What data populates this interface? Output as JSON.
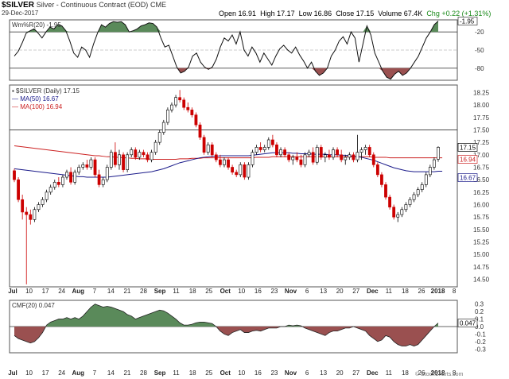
{
  "header": {
    "symbol": "$SILVER",
    "description": "Silver - Continuous Contract (EOD)",
    "exchange": "CME",
    "date": "29-Dec-2017",
    "open": "Open 16.91",
    "high": "High 17.17",
    "low": "Low 16.86",
    "close": "Close 17.15",
    "volume": "Volume 67.4K",
    "change": "Chg +0.22 (+1.31%)",
    "change_color": "#1a8a1a"
  },
  "watermark": "© StockCharts.com",
  "colors": {
    "up": "#ffffff",
    "down": "#cc0000",
    "candle_outline": "#000000",
    "ma50": "#1a1a8a",
    "ma100": "#cc2222",
    "green_fill": "#5a8a5a",
    "red_fill": "#9a5050",
    "price_badge_close": "#ffffff",
    "price_badge_ma100": "#cc2222",
    "price_badge_ma50": "#1a1a8a"
  },
  "x_labels": [
    "Jul",
    "10",
    "17",
    "24",
    "Aug",
    "7",
    "14",
    "21",
    "28",
    "Sep",
    "11",
    "18",
    "25",
    "Oct",
    "10",
    "16",
    "23",
    "Nov",
    "6",
    "13",
    "20",
    "27",
    "Dec",
    "11",
    "18",
    "26",
    "2018",
    "8"
  ],
  "panels": {
    "willr": {
      "legend": "Wm%R(20) -1.95",
      "ticks": [
        "-20",
        "-50",
        "-80"
      ],
      "badge": "-1.95",
      "series": [
        -60,
        -52,
        -38,
        -22,
        -18,
        -15,
        -22,
        -30,
        -20,
        -12,
        -15,
        -8,
        -10,
        -18,
        -35,
        -55,
        -62,
        -45,
        -50,
        -62,
        -40,
        -22,
        -8,
        -12,
        -6,
        -3,
        -4,
        -3,
        -8,
        -20,
        -18,
        -15,
        -10,
        -8,
        -5,
        -6,
        -12,
        -30,
        -45,
        -42,
        -60,
        -78,
        -88,
        -85,
        -78,
        -60,
        -55,
        -70,
        -78,
        -82,
        -78,
        -65,
        -45,
        -30,
        -35,
        -25,
        -40,
        -20,
        -50,
        -60,
        -45,
        -55,
        -70,
        -55,
        -65,
        -75,
        -60,
        -48,
        -42,
        -50,
        -55,
        -45,
        -58,
        -68,
        -80,
        -70,
        -85,
        -92,
        -88,
        -80,
        -60,
        -50,
        -35,
        -28,
        -40,
        -20,
        -30,
        -70,
        -40,
        -10,
        -25,
        -55,
        -70,
        -85,
        -95,
        -98,
        -90,
        -85,
        -92,
        -88,
        -80,
        -70,
        -60,
        -45,
        -30,
        -20,
        -8,
        -2
      ]
    },
    "price": {
      "legend_symbol": "$SILVER (Daily) 17.15",
      "legend_ma50": "MA(50) 16.67",
      "legend_ma100": "MA(100) 16.94",
      "ticks": [
        "18.25",
        "18.00",
        "17.75",
        "17.50",
        "17.25",
        "17.00",
        "16.75",
        "16.50",
        "16.25",
        "16.00",
        "15.75",
        "15.50",
        "15.25",
        "15.00",
        "14.75",
        "14.50"
      ],
      "badges": [
        "17.15",
        "16.94",
        "16.67"
      ]
    },
    "cmf": {
      "legend": "CMF(20) 0.047",
      "ticks": [
        "0.3",
        "0.2",
        "0.1",
        "0.0",
        "-0.1",
        "-0.2",
        "-0.3"
      ],
      "badge": "0.047",
      "series": [
        -0.12,
        -0.16,
        -0.18,
        -0.2,
        -0.22,
        -0.2,
        -0.15,
        -0.08,
        0.02,
        0.06,
        0.08,
        0.1,
        0.1,
        0.12,
        0.1,
        0.12,
        0.1,
        0.14,
        0.2,
        0.26,
        0.3,
        0.28,
        0.26,
        0.27,
        0.26,
        0.24,
        0.22,
        0.2,
        0.16,
        0.14,
        0.1,
        0.12,
        0.14,
        0.16,
        0.18,
        0.2,
        0.22,
        0.21,
        0.18,
        0.14,
        0.1,
        0.05,
        0.02,
        0.02,
        0.03,
        0.05,
        0.06,
        0.06,
        0.05,
        0.04,
        0.0,
        -0.06,
        -0.1,
        -0.12,
        -0.08,
        -0.06,
        -0.04,
        -0.08,
        -0.08,
        -0.06,
        -0.05,
        -0.06,
        -0.04,
        -0.02,
        -0.02,
        -0.02,
        0.0,
        0.0,
        0.02,
        0.01,
        0.02,
        0.01,
        -0.02,
        -0.04,
        -0.06,
        -0.08,
        -0.1,
        -0.12,
        -0.08,
        -0.06,
        -0.06,
        -0.04,
        -0.02,
        -0.02,
        0.0,
        -0.02,
        -0.04,
        -0.06,
        -0.12,
        -0.16,
        -0.2,
        -0.18,
        -0.12,
        -0.14,
        -0.2,
        -0.24,
        -0.26,
        -0.26,
        -0.24,
        -0.26,
        -0.24,
        -0.18,
        -0.12,
        -0.06,
        0.0,
        0.047
      ]
    }
  },
  "chart_data": {
    "type": "candlestick",
    "title": "$SILVER Silver - Continuous Contract (EOD) CME",
    "candles": [
      [
        16.68,
        16.72,
        16.45,
        16.5
      ],
      [
        16.5,
        16.55,
        16.05,
        16.1
      ],
      [
        16.1,
        16.2,
        15.7,
        15.85
      ],
      [
        15.85,
        15.95,
        14.4,
        15.8
      ],
      [
        15.8,
        15.9,
        15.6,
        15.7
      ],
      [
        15.7,
        15.95,
        15.65,
        15.9
      ],
      [
        15.9,
        16.05,
        15.85,
        16.0
      ],
      [
        16.0,
        16.15,
        15.95,
        16.1
      ],
      [
        16.1,
        16.3,
        16.05,
        16.25
      ],
      [
        16.25,
        16.4,
        16.2,
        16.35
      ],
      [
        16.35,
        16.5,
        16.3,
        16.45
      ],
      [
        16.45,
        16.55,
        16.35,
        16.4
      ],
      [
        16.4,
        16.6,
        16.35,
        16.55
      ],
      [
        16.55,
        16.7,
        16.5,
        16.65
      ],
      [
        16.65,
        16.75,
        16.4,
        16.45
      ],
      [
        16.45,
        16.7,
        16.4,
        16.65
      ],
      [
        16.65,
        16.8,
        16.6,
        16.75
      ],
      [
        16.75,
        16.85,
        16.7,
        16.8
      ],
      [
        16.8,
        16.9,
        16.7,
        16.75
      ],
      [
        16.75,
        16.95,
        16.7,
        16.9
      ],
      [
        16.9,
        16.95,
        16.55,
        16.6
      ],
      [
        16.6,
        16.7,
        16.35,
        16.4
      ],
      [
        16.4,
        16.55,
        16.35,
        16.5
      ],
      [
        16.5,
        16.8,
        16.45,
        16.75
      ],
      [
        16.75,
        17.1,
        16.7,
        17.05
      ],
      [
        17.05,
        17.25,
        16.75,
        16.8
      ],
      [
        16.8,
        17.1,
        16.7,
        17.0
      ],
      [
        17.0,
        17.05,
        16.65,
        16.7
      ],
      [
        16.7,
        17.05,
        16.65,
        17.0
      ],
      [
        17.0,
        17.15,
        16.95,
        17.1
      ],
      [
        17.1,
        17.15,
        16.9,
        16.95
      ],
      [
        16.95,
        17.1,
        16.9,
        17.05
      ],
      [
        17.05,
        17.1,
        16.95,
        17.0
      ],
      [
        17.0,
        17.05,
        16.85,
        16.9
      ],
      [
        16.9,
        17.1,
        16.85,
        17.05
      ],
      [
        17.05,
        17.3,
        17.0,
        17.25
      ],
      [
        17.25,
        17.5,
        17.2,
        17.45
      ],
      [
        17.45,
        17.7,
        17.4,
        17.65
      ],
      [
        17.65,
        17.95,
        17.6,
        17.9
      ],
      [
        17.9,
        18.05,
        17.85,
        18.0
      ],
      [
        18.0,
        18.2,
        17.95,
        18.15
      ],
      [
        18.15,
        18.3,
        18.05,
        18.1
      ],
      [
        18.1,
        18.15,
        17.9,
        17.95
      ],
      [
        17.95,
        18.05,
        17.85,
        17.9
      ],
      [
        17.9,
        17.95,
        17.75,
        17.8
      ],
      [
        17.8,
        17.85,
        17.55,
        17.6
      ],
      [
        17.6,
        17.65,
        17.3,
        17.35
      ],
      [
        17.35,
        17.4,
        17.0,
        17.05
      ],
      [
        17.05,
        17.25,
        17.0,
        17.2
      ],
      [
        17.2,
        17.25,
        16.95,
        17.0
      ],
      [
        17.0,
        17.05,
        16.85,
        16.9
      ],
      [
        16.9,
        17.0,
        16.75,
        16.8
      ],
      [
        16.8,
        16.95,
        16.75,
        16.9
      ],
      [
        16.9,
        16.95,
        16.7,
        16.75
      ],
      [
        16.75,
        16.8,
        16.6,
        16.65
      ],
      [
        16.65,
        16.7,
        16.55,
        16.6
      ],
      [
        16.6,
        16.85,
        16.55,
        16.8
      ],
      [
        16.8,
        16.85,
        16.5,
        16.55
      ],
      [
        16.55,
        16.85,
        16.5,
        16.8
      ],
      [
        16.8,
        17.1,
        16.75,
        17.05
      ],
      [
        17.05,
        17.2,
        17.0,
        17.15
      ],
      [
        17.15,
        17.25,
        17.05,
        17.1
      ],
      [
        17.1,
        17.2,
        17.05,
        17.15
      ],
      [
        17.15,
        17.35,
        17.1,
        17.3
      ],
      [
        17.3,
        17.4,
        17.15,
        17.2
      ],
      [
        17.2,
        17.25,
        16.95,
        17.0
      ],
      [
        17.0,
        17.15,
        16.95,
        17.1
      ],
      [
        17.1,
        17.15,
        16.95,
        17.0
      ],
      [
        17.0,
        17.05,
        16.85,
        16.9
      ],
      [
        16.9,
        17.0,
        16.8,
        16.95
      ],
      [
        16.95,
        17.05,
        16.85,
        16.9
      ],
      [
        16.9,
        17.0,
        16.75,
        16.8
      ],
      [
        16.8,
        17.05,
        16.75,
        17.0
      ],
      [
        17.0,
        17.1,
        16.95,
        17.05
      ],
      [
        17.05,
        17.15,
        16.8,
        16.85
      ],
      [
        16.85,
        17.2,
        16.8,
        17.15
      ],
      [
        17.15,
        17.2,
        16.9,
        16.95
      ],
      [
        16.95,
        17.05,
        16.85,
        17.0
      ],
      [
        17.0,
        17.1,
        16.9,
        16.95
      ],
      [
        16.95,
        17.15,
        16.9,
        17.1
      ],
      [
        17.1,
        17.15,
        16.95,
        17.0
      ],
      [
        17.0,
        17.1,
        16.85,
        16.9
      ],
      [
        16.9,
        17.0,
        16.8,
        16.95
      ],
      [
        16.95,
        17.05,
        16.9,
        17.0
      ],
      [
        17.0,
        17.05,
        16.85,
        16.9
      ],
      [
        16.9,
        17.4,
        16.85,
        17.05
      ],
      [
        17.05,
        17.15,
        16.9,
        17.1
      ],
      [
        17.1,
        17.2,
        17.0,
        17.15
      ],
      [
        17.15,
        17.2,
        16.95,
        17.0
      ],
      [
        17.0,
        17.05,
        16.75,
        16.8
      ],
      [
        16.8,
        16.85,
        16.55,
        16.6
      ],
      [
        16.6,
        16.65,
        16.35,
        16.4
      ],
      [
        16.4,
        16.45,
        16.1,
        16.15
      ],
      [
        16.15,
        16.2,
        15.9,
        15.95
      ],
      [
        15.95,
        16.0,
        15.7,
        15.75
      ],
      [
        15.75,
        15.85,
        15.65,
        15.8
      ],
      [
        15.8,
        15.95,
        15.75,
        15.9
      ],
      [
        15.9,
        16.05,
        15.85,
        16.0
      ],
      [
        16.0,
        16.15,
        15.95,
        16.1
      ],
      [
        16.1,
        16.25,
        16.05,
        16.2
      ],
      [
        16.2,
        16.35,
        16.15,
        16.3
      ],
      [
        16.3,
        16.45,
        16.25,
        16.4
      ],
      [
        16.4,
        16.65,
        16.35,
        16.6
      ],
      [
        16.6,
        16.8,
        16.55,
        16.75
      ],
      [
        16.75,
        16.95,
        16.7,
        16.9
      ],
      [
        16.91,
        17.17,
        16.86,
        17.15
      ]
    ],
    "ma50": [
      16.72,
      16.71,
      16.7,
      16.69,
      16.68,
      16.67,
      16.66,
      16.65,
      16.64,
      16.63,
      16.62,
      16.61,
      16.6,
      16.59,
      16.58,
      16.57,
      16.56,
      16.56,
      16.55,
      16.55,
      16.55,
      16.55,
      16.55,
      16.55,
      16.56,
      16.57,
      16.58,
      16.59,
      16.6,
      16.61,
      16.62,
      16.63,
      16.64,
      16.65,
      16.66,
      16.68,
      16.7,
      16.72,
      16.75,
      16.78,
      16.81,
      16.84,
      16.86,
      16.88,
      16.9,
      16.92,
      16.94,
      16.95,
      16.96,
      16.97,
      16.97,
      16.98,
      16.98,
      16.98,
      16.98,
      16.98,
      16.98,
      16.98,
      16.98,
      16.99,
      17.0,
      17.01,
      17.02,
      17.03,
      17.04,
      17.04,
      17.04,
      17.04,
      17.04,
      17.03,
      17.03,
      17.02,
      17.02,
      17.02,
      17.01,
      17.01,
      17.01,
      17.01,
      17.0,
      17.0,
      17.0,
      16.99,
      16.99,
      16.98,
      16.97,
      16.96,
      16.95,
      16.93,
      16.91,
      16.89,
      16.86,
      16.83,
      16.8,
      16.77,
      16.74,
      16.72,
      16.7,
      16.68,
      16.67,
      16.66,
      16.66,
      16.66,
      16.66,
      16.66,
      16.66,
      16.67,
      16.67
    ],
    "ma100": [
      17.18,
      17.17,
      17.16,
      17.15,
      17.14,
      17.13,
      17.12,
      17.11,
      17.1,
      17.09,
      17.08,
      17.07,
      17.06,
      17.05,
      17.04,
      17.03,
      17.02,
      17.01,
      17.0,
      16.99,
      16.98,
      16.98,
      16.97,
      16.96,
      16.96,
      16.95,
      16.95,
      16.94,
      16.94,
      16.93,
      16.93,
      16.92,
      16.92,
      16.92,
      16.91,
      16.91,
      16.91,
      16.91,
      16.91,
      16.91,
      16.91,
      16.92,
      16.92,
      16.92,
      16.93,
      16.93,
      16.93,
      16.94,
      16.94,
      16.94,
      16.94,
      16.94,
      16.94,
      16.94,
      16.94,
      16.94,
      16.94,
      16.94,
      16.94,
      16.94,
      16.95,
      16.95,
      16.95,
      16.95,
      16.96,
      16.96,
      16.96,
      16.96,
      16.96,
      16.96,
      16.96,
      16.96,
      16.96,
      16.96,
      16.96,
      16.96,
      16.96,
      16.96,
      16.96,
      16.96,
      16.96,
      16.96,
      16.96,
      16.96,
      16.96,
      16.96,
      16.96,
      16.96,
      16.96,
      16.95,
      16.95,
      16.95,
      16.95,
      16.94,
      16.94,
      16.94,
      16.94,
      16.94,
      16.94,
      16.94,
      16.94,
      16.94,
      16.94,
      16.94,
      16.94,
      16.94,
      16.94
    ],
    "ylim": [
      14.35,
      18.4
    ],
    "resistance": 17.5,
    "last": {
      "close": 17.15,
      "ma100": 16.94,
      "ma50": 16.67
    }
  }
}
